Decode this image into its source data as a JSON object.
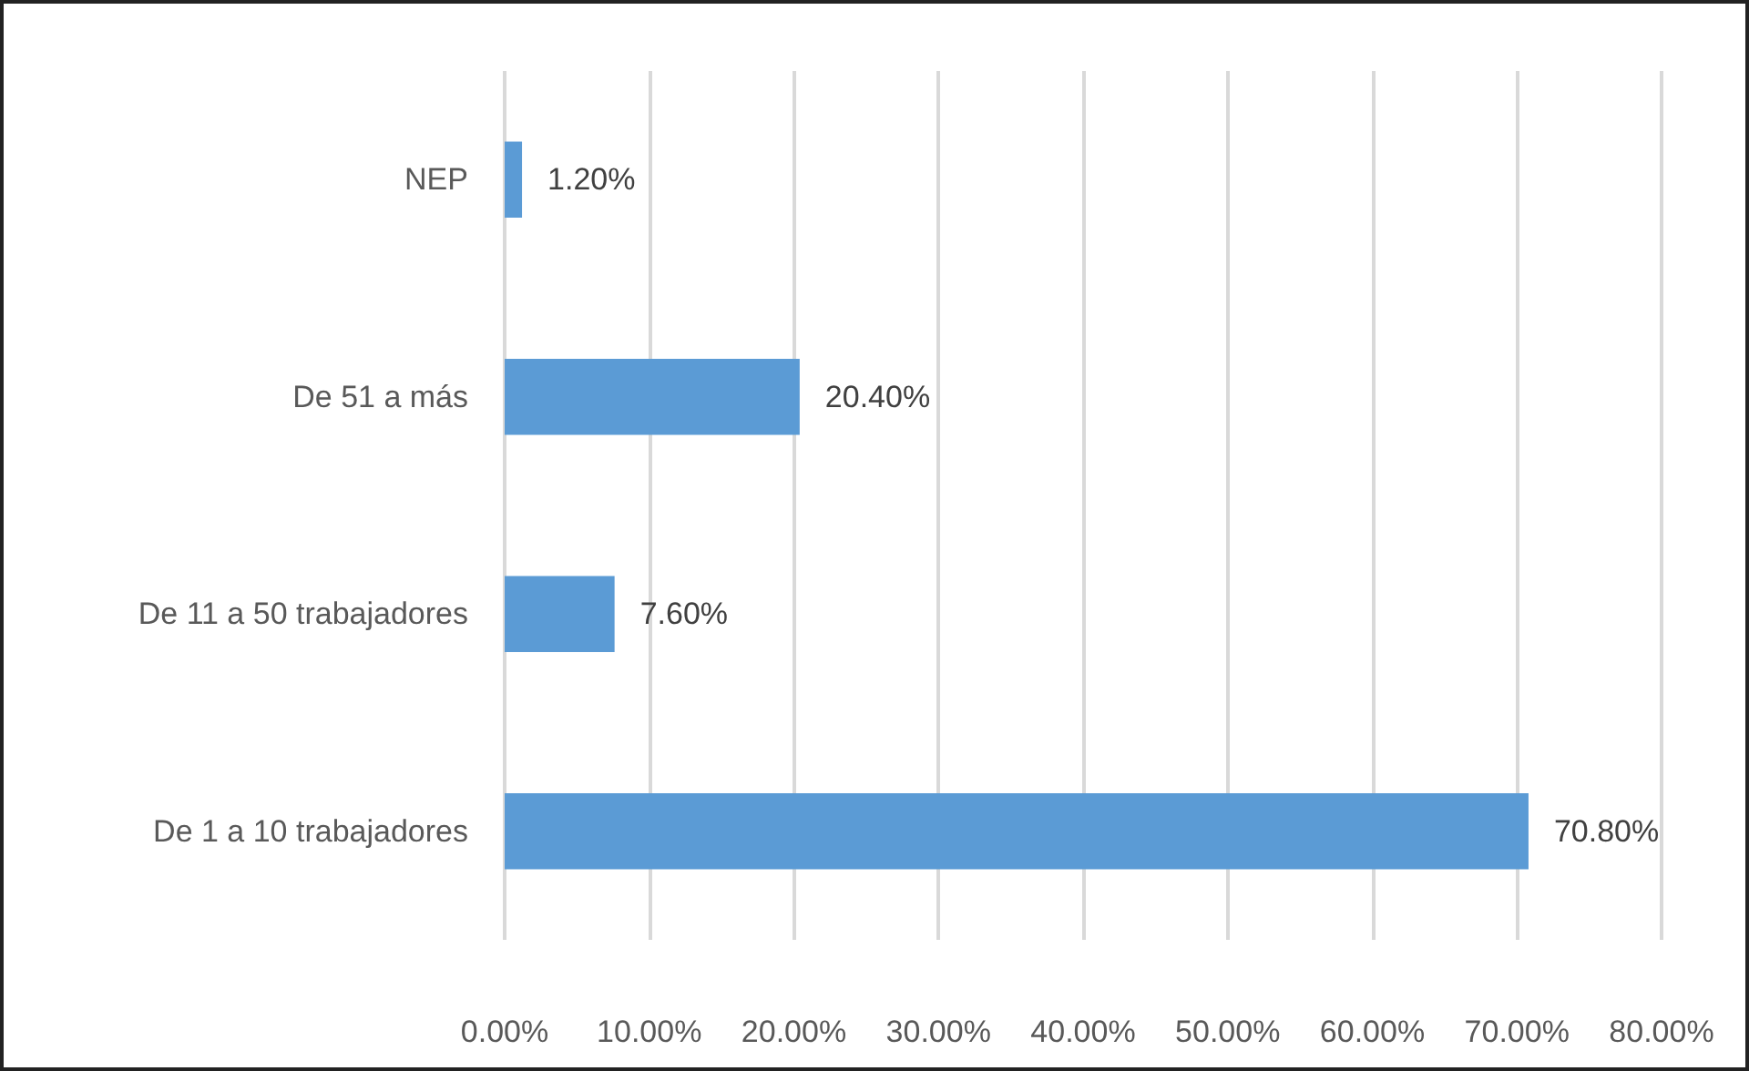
{
  "chart_data": {
    "type": "bar",
    "orientation": "horizontal",
    "categories": [
      "NEP",
      "De 51 a más",
      "De 11 a 50 trabajadores",
      "De 1 a 10 trabajadores"
    ],
    "values": [
      1.2,
      20.4,
      7.6,
      70.8
    ],
    "value_labels": [
      "1.20%",
      "20.40%",
      "7.60%",
      "70.80%"
    ],
    "color": "#5b9bd5",
    "xlim": [
      0,
      80
    ],
    "xticks": [
      {
        "value": 0,
        "label": "0.00%"
      },
      {
        "value": 10,
        "label": "10.00%"
      },
      {
        "value": 20,
        "label": "20.00%"
      },
      {
        "value": 30,
        "label": "30.00%"
      },
      {
        "value": 40,
        "label": "40.00%"
      },
      {
        "value": 50,
        "label": "50.00%"
      },
      {
        "value": 60,
        "label": "60.00%"
      },
      {
        "value": 70,
        "label": "70.00%"
      },
      {
        "value": 80,
        "label": "80.00%"
      }
    ],
    "grid": "x"
  }
}
